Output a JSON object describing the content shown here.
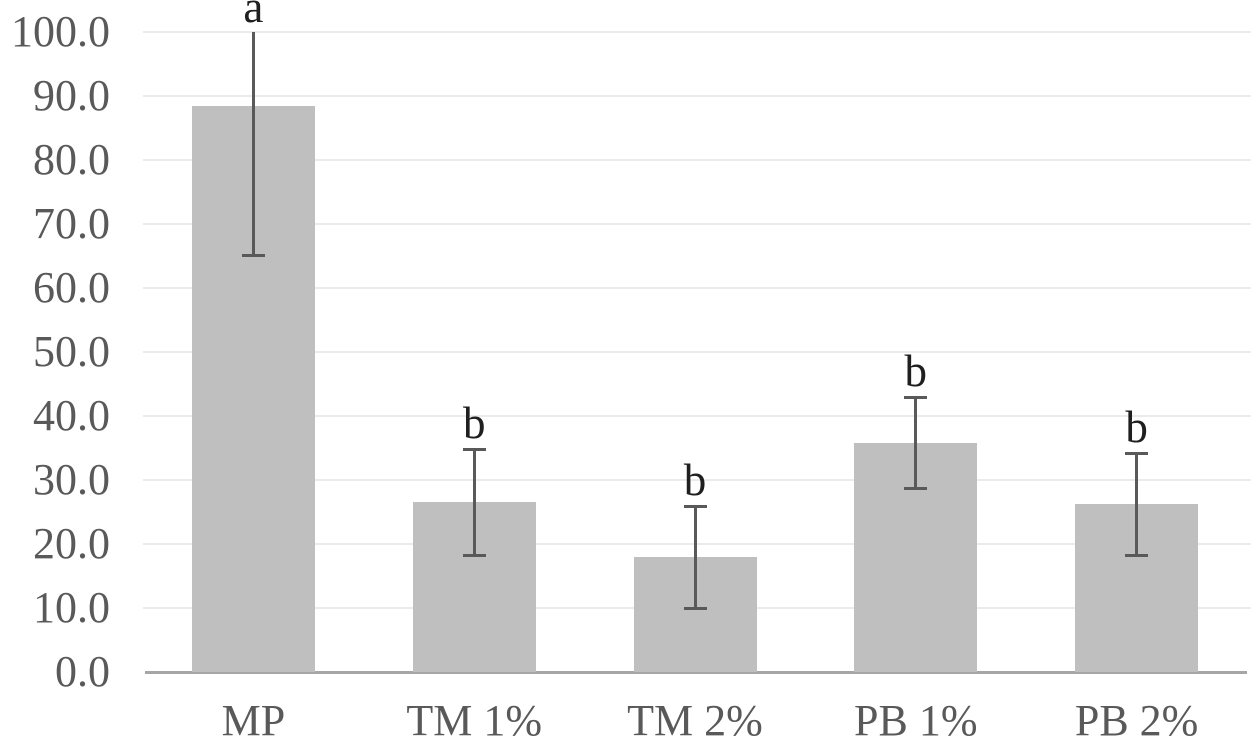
{
  "chart_data": {
    "type": "bar",
    "title": "",
    "xlabel": "",
    "ylabel": "",
    "categories": [
      "MP",
      "TM 1%",
      "TM 2%",
      "PB 1%",
      "PB 2%"
    ],
    "values": [
      88.4,
      26.5,
      17.9,
      35.8,
      26.2
    ],
    "error_bars": [
      23.5,
      8.5,
      8.2,
      7.3,
      8.2
    ],
    "significance_letters": [
      "a",
      "b",
      "b",
      "b",
      "b"
    ],
    "ylim": [
      0,
      100
    ],
    "ytick_interval": 10,
    "ytick_labels": [
      "0.0",
      "10.0",
      "20.0",
      "30.0",
      "40.0",
      "50.0",
      "60.0",
      "70.0",
      "80.0",
      "90.0",
      "100.0"
    ],
    "grid": true,
    "legend": false,
    "error_bars_clipped_at_ymax": true,
    "colors": {
      "bar_fill": "#bfbfbf",
      "error_bar": "#595959",
      "gridline": "#ebebeb",
      "axis_line": "#a6a6a6",
      "tick_label": "#595959",
      "letter": "#1f1f1f",
      "background": "#ffffff"
    }
  }
}
